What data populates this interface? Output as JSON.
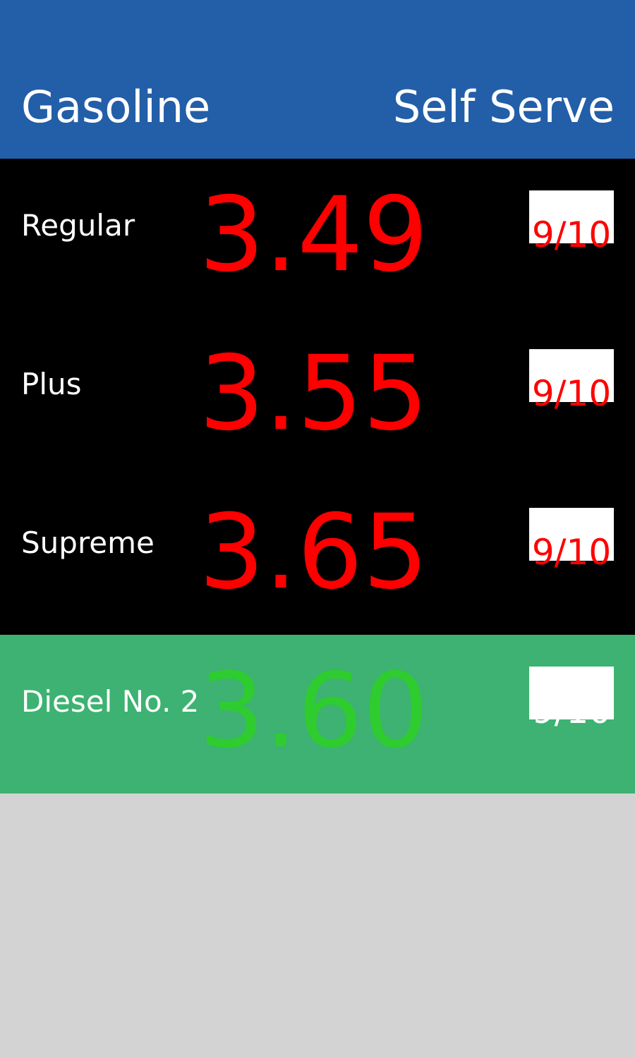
{
  "header": {
    "title_left": "Gasoline",
    "title_right": "Self Serve",
    "background_color": "#235ea8"
  },
  "rows": [
    {
      "grade": "Regular",
      "price": "3.49",
      "fraction": "9/10",
      "background_color": "#000000",
      "price_color": "#ff0000",
      "fraction_color": "#ff0000"
    },
    {
      "grade": "Plus",
      "price": "3.55",
      "fraction": "9/10",
      "background_color": "#000000",
      "price_color": "#ff0000",
      "fraction_color": "#ff0000"
    },
    {
      "grade": "Supreme",
      "price": "3.65",
      "fraction": "9/10",
      "background_color": "#000000",
      "price_color": "#ff0000",
      "fraction_color": "#ff0000"
    },
    {
      "grade": "Diesel No. 2",
      "price": "3.60",
      "fraction": "9/10",
      "background_color": "#3db272",
      "price_color": "#2ecc2e",
      "fraction_color": "#ffffff"
    }
  ],
  "page_background_color": "#d3d3d3"
}
